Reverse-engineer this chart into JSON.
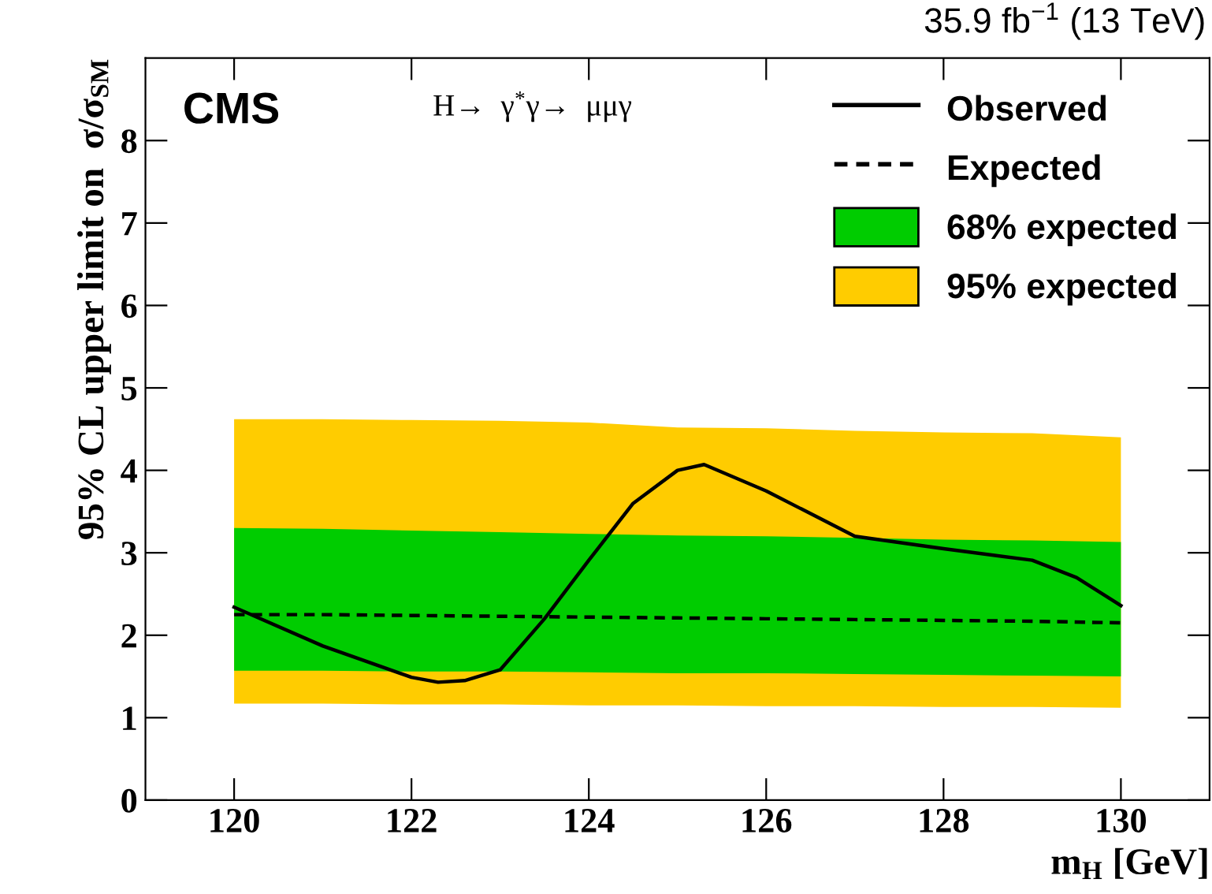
{
  "chart_data": {
    "type": "line",
    "title": "35.9 fb$^{−1}$ (13 TeV)",
    "xlabel": "m$_{H}$ [GeV]",
    "ylabel": "95% CL upper limit on  σ/σ$_{SM}$",
    "annotations": [
      "CMS",
      "H→  γ$^{*}$γ→  μμγ"
    ],
    "xlim": [
      119,
      131
    ],
    "xticks": [
      120,
      122,
      124,
      126,
      128,
      130
    ],
    "ylim": [
      0,
      9
    ],
    "yticks": [
      0,
      1,
      2,
      3,
      4,
      5,
      6,
      7,
      8
    ],
    "grid": false,
    "legend": "top right",
    "series": [
      {
        "name": "95% expected",
        "type": "area",
        "color": "#ffcc00",
        "x": [
          120,
          121,
          122,
          123,
          124,
          125,
          126,
          127,
          128,
          129,
          130
        ],
        "lower": [
          1.17,
          1.17,
          1.16,
          1.16,
          1.15,
          1.15,
          1.14,
          1.14,
          1.13,
          1.13,
          1.12
        ],
        "values": [
          null,
          null,
          null,
          null,
          null,
          null,
          null,
          null,
          null,
          null,
          null
        ],
        "upper": [
          4.62,
          4.62,
          4.61,
          4.6,
          4.58,
          4.52,
          4.51,
          4.48,
          4.46,
          4.45,
          4.4
        ]
      },
      {
        "name": "68% expected",
        "type": "area",
        "color": "#00cc00",
        "x": [
          120,
          121,
          122,
          123,
          124,
          125,
          126,
          127,
          128,
          129,
          130
        ],
        "lower": [
          1.57,
          1.57,
          1.56,
          1.56,
          1.55,
          1.54,
          1.54,
          1.53,
          1.52,
          1.51,
          1.5
        ],
        "values": [
          null,
          null,
          null,
          null,
          null,
          null,
          null,
          null,
          null,
          null,
          null
        ],
        "upper": [
          3.3,
          3.29,
          3.27,
          3.25,
          3.23,
          3.21,
          3.2,
          3.18,
          3.16,
          3.15,
          3.13
        ]
      },
      {
        "name": "Expected",
        "color": "#000000",
        "line_style": "dashed",
        "x": [
          120,
          121,
          122,
          123,
          124,
          125,
          126,
          127,
          128,
          129,
          130
        ],
        "values": [
          2.25,
          2.25,
          2.24,
          2.23,
          2.22,
          2.21,
          2.2,
          2.19,
          2.18,
          2.17,
          2.15
        ]
      },
      {
        "name": "Observed",
        "color": "#000000",
        "line_style": "solid",
        "x": [
          120,
          121,
          122,
          122.3,
          122.6,
          123,
          123.5,
          124,
          124.5,
          125,
          125.3,
          126,
          127,
          128,
          129,
          129.5,
          130
        ],
        "values": [
          2.34,
          1.87,
          1.49,
          1.43,
          1.45,
          1.58,
          2.2,
          2.91,
          3.6,
          4.0,
          4.07,
          3.75,
          3.2,
          3.05,
          2.91,
          2.7,
          2.36
        ]
      }
    ]
  }
}
